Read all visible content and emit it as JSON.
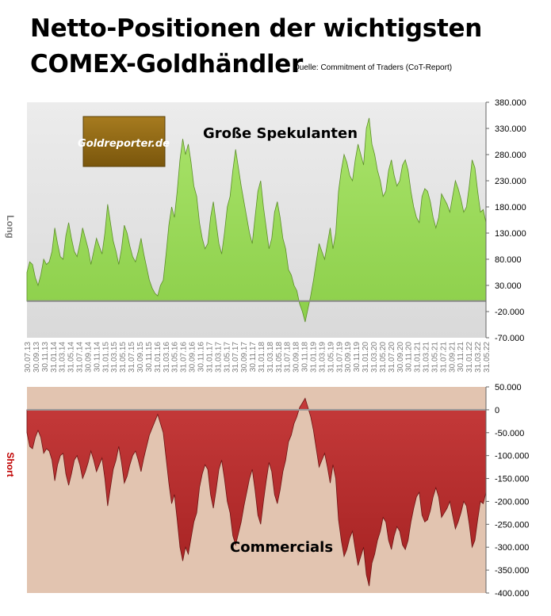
{
  "header": {
    "title_line1": "Netto-Positionen der wichtigsten",
    "title_line2": "COMEX-Goldhändler",
    "source": "Quelle: Commitment of Traders (CoT-Report)"
  },
  "logo": {
    "text": "Goldreporter.de"
  },
  "chart_data": [
    {
      "type": "area",
      "title": "Große Spekulanten",
      "ylabel": "Long",
      "ylim": [
        -70000,
        380000
      ],
      "yticks": [
        "380.000",
        "330.000",
        "280.000",
        "230.000",
        "180.000",
        "130.000",
        "80.000",
        "30.000",
        "-20.000",
        "-70.000"
      ],
      "ytick_values": [
        380000,
        330000,
        280000,
        230000,
        180000,
        130000,
        80000,
        30000,
        -20000,
        -70000
      ],
      "xticks": [
        "30.07.13",
        "30.09.13",
        "30.11.13",
        "31.01.14",
        "31.03.14",
        "31.05.14",
        "31.07.14",
        "30.09.14",
        "30.11.14",
        "31.01.15",
        "31.03.15",
        "31.05.15",
        "31.07.15",
        "30.09.15",
        "30.11.15",
        "31.01.16",
        "31.03.16",
        "31.05.16",
        "31.07.16",
        "30.09.16",
        "30.11.16",
        "31.01.17",
        "31.03.17",
        "31.05.17",
        "31.07.17",
        "30.09.17",
        "30.11.17",
        "31.01.18",
        "31.03.18",
        "31.05.18",
        "31.07.18",
        "30.09.18",
        "30.11.18",
        "31.01.19",
        "31.03.19",
        "31.05.19",
        "31.07.19",
        "30.09.19",
        "30.11.19",
        "31.01.20",
        "31.03.20",
        "31.05.20",
        "31.07.20",
        "30.09.20",
        "30.11.20",
        "31.01.21",
        "31.03.21",
        "31.05.21",
        "31.07.21",
        "30.09.21",
        "30.11.21",
        "31.01.22",
        "31.03.22",
        "31.05.22"
      ],
      "color": "#8ccf4a",
      "grid": false,
      "series": [
        {
          "values": [
            55000,
            75000,
            70000,
            45000,
            30000,
            50000,
            80000,
            70000,
            75000,
            95000,
            140000,
            110000,
            85000,
            80000,
            125000,
            150000,
            120000,
            95000,
            85000,
            110000,
            140000,
            120000,
            100000,
            70000,
            95000,
            120000,
            105000,
            90000,
            130000,
            185000,
            150000,
            115000,
            95000,
            70000,
            100000,
            145000,
            130000,
            105000,
            85000,
            75000,
            95000,
            120000,
            90000,
            65000,
            40000,
            25000,
            15000,
            10000,
            30000,
            40000,
            90000,
            145000,
            180000,
            160000,
            210000,
            270000,
            310000,
            280000,
            300000,
            265000,
            220000,
            200000,
            150000,
            120000,
            100000,
            110000,
            160000,
            190000,
            150000,
            110000,
            90000,
            130000,
            180000,
            200000,
            250000,
            290000,
            255000,
            220000,
            190000,
            160000,
            130000,
            110000,
            160000,
            210000,
            230000,
            180000,
            140000,
            100000,
            120000,
            170000,
            190000,
            160000,
            120000,
            100000,
            60000,
            50000,
            30000,
            20000,
            -5000,
            -20000,
            -40000,
            -15000,
            10000,
            40000,
            75000,
            110000,
            95000,
            80000,
            110000,
            140000,
            100000,
            130000,
            210000,
            250000,
            280000,
            265000,
            240000,
            230000,
            270000,
            300000,
            280000,
            260000,
            330000,
            350000,
            300000,
            280000,
            250000,
            230000,
            200000,
            210000,
            250000,
            270000,
            240000,
            220000,
            230000,
            260000,
            270000,
            250000,
            210000,
            180000,
            160000,
            150000,
            200000,
            215000,
            210000,
            190000,
            160000,
            140000,
            160000,
            205000,
            195000,
            185000,
            170000,
            200000,
            230000,
            215000,
            195000,
            170000,
            180000,
            220000,
            270000,
            255000,
            210000,
            170000,
            175000,
            150000
          ]
        }
      ]
    },
    {
      "type": "area",
      "title": "Commercials",
      "ylabel": "Short",
      "ylim": [
        -400000,
        50000
      ],
      "yticks": [
        "50.000",
        "0",
        "-50.000",
        "-100.000",
        "-150.000",
        "-200.000",
        "-250.000",
        "-300.000",
        "-350.000",
        "-400.000"
      ],
      "ytick_values": [
        50000,
        0,
        -50000,
        -100000,
        -150000,
        -200000,
        -250000,
        -300000,
        -350000,
        -400000
      ],
      "color": "#b22a2a",
      "grid": false,
      "series": [
        {
          "values": [
            -50000,
            -80000,
            -85000,
            -60000,
            -45000,
            -60000,
            -95000,
            -85000,
            -90000,
            -110000,
            -155000,
            -120000,
            -100000,
            -95000,
            -140000,
            -165000,
            -140000,
            -110000,
            -100000,
            -120000,
            -150000,
            -135000,
            -115000,
            -90000,
            -110000,
            -135000,
            -120000,
            -105000,
            -150000,
            -210000,
            -170000,
            -130000,
            -110000,
            -80000,
            -115000,
            -160000,
            -145000,
            -120000,
            -100000,
            -90000,
            -110000,
            -135000,
            -105000,
            -80000,
            -55000,
            -40000,
            -25000,
            -10000,
            -30000,
            -50000,
            -105000,
            -160000,
            -205000,
            -185000,
            -240000,
            -300000,
            -330000,
            -300000,
            -315000,
            -280000,
            -245000,
            -225000,
            -170000,
            -140000,
            -120000,
            -130000,
            -185000,
            -215000,
            -175000,
            -130000,
            -110000,
            -150000,
            -200000,
            -225000,
            -275000,
            -295000,
            -270000,
            -245000,
            -210000,
            -180000,
            -150000,
            -130000,
            -175000,
            -230000,
            -250000,
            -200000,
            -155000,
            -115000,
            -135000,
            -185000,
            -205000,
            -175000,
            -135000,
            -110000,
            -70000,
            -55000,
            -30000,
            -15000,
            5000,
            15000,
            25000,
            5000,
            -15000,
            -45000,
            -85000,
            -125000,
            -110000,
            -95000,
            -125000,
            -160000,
            -120000,
            -150000,
            -240000,
            -285000,
            -320000,
            -305000,
            -280000,
            -265000,
            -305000,
            -340000,
            -320000,
            -300000,
            -360000,
            -385000,
            -335000,
            -315000,
            -285000,
            -265000,
            -235000,
            -245000,
            -285000,
            -305000,
            -275000,
            -255000,
            -265000,
            -295000,
            -305000,
            -285000,
            -245000,
            -215000,
            -190000,
            -180000,
            -230000,
            -245000,
            -240000,
            -220000,
            -190000,
            -170000,
            -190000,
            -235000,
            -225000,
            -215000,
            -200000,
            -230000,
            -260000,
            -245000,
            -225000,
            -200000,
            -210000,
            -250000,
            -300000,
            -285000,
            -240000,
            -200000,
            -205000,
            -180000
          ]
        }
      ]
    }
  ]
}
